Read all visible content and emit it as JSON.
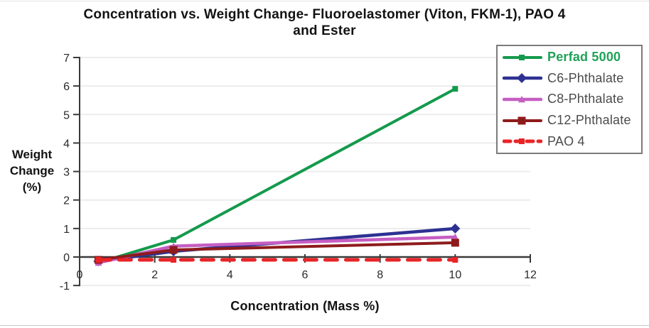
{
  "title": {
    "line1": "Concentration vs. Weight Change- Fluoroelastomer (Viton, FKM-1), PAO 4",
    "line2": "and Ester"
  },
  "colors": {
    "background": "#ffffff",
    "axis": "#3a3a3a",
    "grid": "#ececec",
    "tick_label": "#2a2a2a",
    "title_text": "#121212",
    "legend_border": "#7b7b7b",
    "legend_label_gray": "#4b4b4b"
  },
  "chart_data": {
    "type": "line",
    "title": "Concentration vs. Weight Change- Fluoroelastomer (Viton, FKM-1), PAO 4 and Ester",
    "xlabel": "Concentration (Mass %)",
    "ylabel": "Weight Change (%)",
    "ylabel_lines": [
      "Weight",
      "Change",
      "(%)"
    ],
    "xlim": [
      0,
      12
    ],
    "ylim": [
      -1,
      7
    ],
    "xticks": [
      0,
      2,
      4,
      6,
      8,
      10,
      12
    ],
    "yticks": [
      -1,
      0,
      1,
      2,
      3,
      4,
      5,
      6,
      7
    ],
    "grid": "horizontal light lines at integer y values",
    "legend_position": "top-right",
    "x_shared": [
      0.5,
      2.5,
      10
    ],
    "series": [
      {
        "name": "Perfad 5000",
        "color": "#149a4c",
        "label_color": "#1fa257",
        "label_bold": true,
        "marker": "square",
        "marker_size": 8,
        "line_width": 4,
        "dash": null,
        "x": [
          0.5,
          2.5,
          10
        ],
        "y": [
          -0.2,
          0.6,
          5.9
        ]
      },
      {
        "name": "C6-Phthalate",
        "color": "#2e3192",
        "label_color": "#4b4b4b",
        "label_bold": false,
        "marker": "diamond",
        "marker_size": 14,
        "line_width": 4.5,
        "dash": null,
        "x": [
          0.5,
          2.5,
          10
        ],
        "y": [
          -0.15,
          0.2,
          1.0
        ]
      },
      {
        "name": "C8-Phthalate",
        "color": "#c55ec2",
        "label_color": "#4b4b4b",
        "label_bold": false,
        "marker": "triangle",
        "marker_size": 10,
        "line_width": 4.5,
        "dash": null,
        "x": [
          0.5,
          2.5,
          10
        ],
        "y": [
          -0.2,
          0.38,
          0.7
        ]
      },
      {
        "name": "C12-Phthalate",
        "color": "#8e1b1b",
        "label_color": "#4b4b4b",
        "label_bold": false,
        "marker": "square",
        "marker_size": 11,
        "line_width": 4,
        "dash": null,
        "x": [
          0.5,
          2.5,
          10
        ],
        "y": [
          -0.1,
          0.25,
          0.5
        ]
      },
      {
        "name": "PAO 4",
        "color": "#e92427",
        "label_color": "#4b4b4b",
        "label_bold": false,
        "marker": "square",
        "marker_size": 8,
        "line_width": 5,
        "dash": "17 12",
        "x": [
          0.5,
          2.5,
          10
        ],
        "y": [
          -0.1,
          -0.1,
          -0.1
        ]
      }
    ]
  }
}
